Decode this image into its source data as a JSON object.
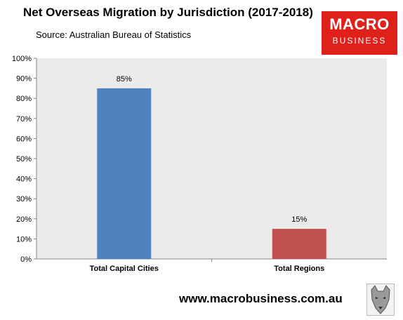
{
  "header": {
    "title": "Net Overseas Migration by Jurisdiction (2017-2018)",
    "source": "Source: Australian Bureau of Statistics"
  },
  "logo": {
    "line1": "MACRO",
    "line2": "BUSINESS",
    "color": "#e0201b"
  },
  "footer": {
    "url": "www.macrobusiness.com.au"
  },
  "chart_data": {
    "type": "bar",
    "title": "Net Overseas Migration by Jurisdiction (2017-2018)",
    "subtitle": "Source: Australian Bureau of Statistics",
    "categories": [
      "Total Capital Cities",
      "Total Regions"
    ],
    "values": [
      85,
      15
    ],
    "data_labels": [
      "85%",
      "15%"
    ],
    "bar_colors": [
      "#4f81bd",
      "#c0504d"
    ],
    "plot_background": "#ebebeb",
    "ylim": [
      0,
      100
    ],
    "yticks": [
      "0%",
      "10%",
      "20%",
      "30%",
      "40%",
      "50%",
      "60%",
      "70%",
      "80%",
      "90%",
      "100%"
    ],
    "grid": false,
    "legend": false
  }
}
